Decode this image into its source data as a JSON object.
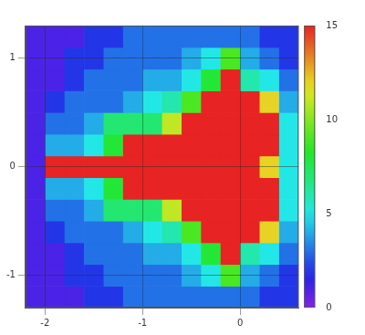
{
  "chart_data": {
    "type": "heatmap",
    "xlim": [
      -2.2,
      0.6
    ],
    "xticks": [
      -2,
      -1,
      0
    ],
    "ylim": [
      -1.3,
      1.3
    ],
    "yticks": [
      -1,
      0,
      1
    ],
    "grid": true,
    "cells": {
      "x": [
        -2.1,
        -1.9,
        -1.7,
        -1.5,
        -1.3,
        -1.1,
        -0.9,
        -0.7,
        -0.5,
        -0.3,
        -0.1,
        0.1,
        0.3,
        0.5
      ],
      "y": [
        -1.2,
        -1.0,
        -0.8,
        -0.6,
        -0.4,
        -0.2,
        0,
        0.2,
        0.4,
        0.6,
        0.8,
        1.0,
        1.2
      ],
      "values": [
        [
          1,
          1,
          1,
          2,
          2,
          3,
          3,
          3,
          3,
          3,
          3,
          3,
          2,
          2
        ],
        [
          1,
          1,
          2,
          2,
          3,
          3,
          3,
          3,
          4,
          5,
          9,
          4,
          3,
          2
        ],
        [
          1,
          1,
          2,
          3,
          3,
          3,
          4,
          4,
          5,
          8,
          15,
          6,
          5,
          3
        ],
        [
          1,
          2,
          3,
          3,
          3,
          4,
          5,
          6,
          9,
          15,
          15,
          15,
          12,
          4
        ],
        [
          1,
          3,
          3,
          4,
          7,
          7,
          7,
          11,
          15,
          15,
          15,
          15,
          15,
          5
        ],
        [
          1,
          4,
          4,
          5,
          8,
          15,
          15,
          15,
          15,
          15,
          15,
          15,
          15,
          5
        ],
        [
          1,
          15,
          15,
          15,
          15,
          15,
          15,
          15,
          15,
          15,
          15,
          15,
          12,
          5
        ],
        [
          1,
          4,
          4,
          5,
          8,
          15,
          15,
          15,
          15,
          15,
          15,
          15,
          15,
          5
        ],
        [
          1,
          3,
          3,
          4,
          7,
          7,
          7,
          11,
          15,
          15,
          15,
          15,
          15,
          5
        ],
        [
          1,
          2,
          3,
          3,
          3,
          4,
          5,
          6,
          9,
          15,
          15,
          15,
          12,
          4
        ],
        [
          1,
          1,
          2,
          3,
          3,
          3,
          4,
          4,
          5,
          8,
          15,
          6,
          5,
          3
        ],
        [
          1,
          1,
          2,
          2,
          3,
          3,
          3,
          3,
          4,
          5,
          9,
          4,
          3,
          2
        ],
        [
          1,
          1,
          1,
          2,
          2,
          3,
          3,
          3,
          3,
          3,
          3,
          3,
          2,
          2
        ]
      ]
    },
    "colorbar": {
      "range": [
        0,
        15
      ],
      "ticks": [
        0,
        5,
        10,
        15
      ]
    }
  }
}
